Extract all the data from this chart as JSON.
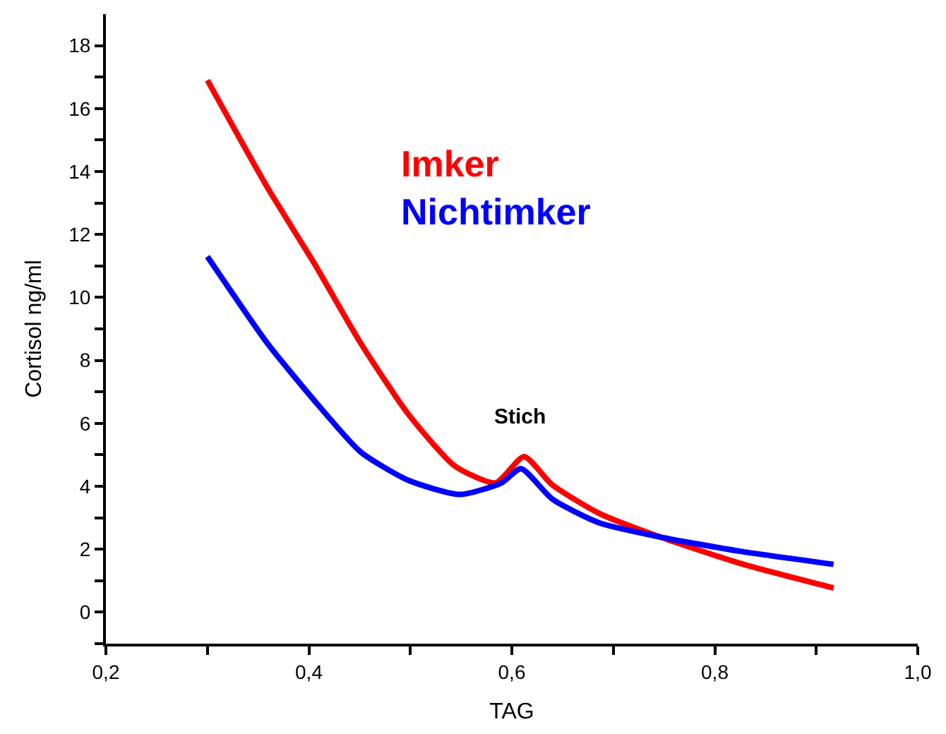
{
  "chart_data": {
    "type": "line",
    "xlabel": "TAG",
    "ylabel": "Cortisol ng/ml",
    "xlim": [
      0.2,
      1.0
    ],
    "ylim": [
      -1,
      19
    ],
    "xticks": [
      {
        "value": 0.2,
        "label": "0,2"
      },
      {
        "value": 0.3,
        "label": null
      },
      {
        "value": 0.4,
        "label": "0,4"
      },
      {
        "value": 0.5,
        "label": null
      },
      {
        "value": 0.6,
        "label": "0,6"
      },
      {
        "value": 0.7,
        "label": null
      },
      {
        "value": 0.8,
        "label": "0,8"
      },
      {
        "value": 0.9,
        "label": null
      },
      {
        "value": 1.0,
        "label": "1,0"
      }
    ],
    "yticks": [
      {
        "value": -1,
        "label": null
      },
      0,
      {
        "value": 1,
        "label": null
      },
      2,
      {
        "value": 3,
        "label": null
      },
      4,
      {
        "value": 5,
        "label": null
      },
      6,
      {
        "value": 7,
        "label": null
      },
      8,
      {
        "value": 9,
        "label": null
      },
      10,
      {
        "value": 11,
        "label": null
      },
      12,
      {
        "value": 13,
        "label": null
      },
      14,
      {
        "value": 15,
        "label": null
      },
      16,
      {
        "value": 17,
        "label": null
      },
      18
    ],
    "legend": false,
    "marker": "none",
    "line_style": "solid",
    "annotations": [
      "Stich"
    ],
    "series": [
      {
        "name": "Imker",
        "color": "#ff0000",
        "x": [
          0.3,
          0.359,
          0.405,
          0.451,
          0.498,
          0.544,
          0.584,
          0.612,
          0.64,
          0.686,
          0.746,
          0.824,
          0.917
        ],
        "values": [
          16.9,
          13.5,
          11.1,
          8.55,
          6.29,
          4.64,
          4.11,
          4.94,
          4.04,
          3.14,
          2.39,
          1.56,
          0.77
        ]
      },
      {
        "name": "Nichtimker",
        "color": "#0000ff",
        "x": [
          0.3,
          0.359,
          0.405,
          0.451,
          0.498,
          0.549,
          0.59,
          0.609,
          0.64,
          0.686,
          0.746,
          0.824,
          0.917
        ],
        "values": [
          11.3,
          8.55,
          6.74,
          5.09,
          4.19,
          3.74,
          4.11,
          4.56,
          3.59,
          2.84,
          2.39,
          1.94,
          1.52
        ]
      }
    ]
  }
}
